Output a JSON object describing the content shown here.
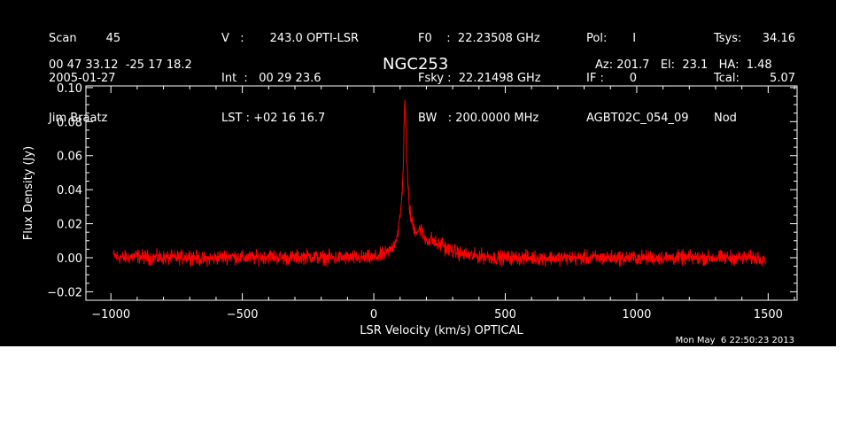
{
  "header": {
    "col1": [
      "Scan        45",
      "2005-01-27",
      "Jim Braatz"
    ],
    "col2": [
      "V   :       243.0 OPTI-LSR",
      "Int  :   00 29 23.6",
      "LST : +02 16 16.7"
    ],
    "col3": [
      "F0    :  22.23508 GHz",
      "Fsky :  22.21498 GHz",
      "BW   : 200.0000 MHz"
    ],
    "col4": [
      "Pol:       I",
      "IF :       0",
      "AGBT02C_054_09"
    ],
    "col5": [
      "Tsys:",
      "Tcal:",
      "Nod"
    ],
    "col6": [
      "34.16",
      "5.07"
    ],
    "coords": "00 47 33.12  -25 17 18.2",
    "azel": "Az: 201.7   El:  23.1   HA:  1.48"
  },
  "timestamp": "Mon May  6 22:50:23 2013",
  "colors": {
    "background": "#000000",
    "foreground": "#ffffff",
    "series": "#ff0000"
  },
  "chart_data": {
    "type": "line",
    "title": "NGC253",
    "xlabel": "LSR Velocity (km/s) OPTICAL",
    "ylabel": "Flux Density (Jy)",
    "xlim": [
      -1095,
      1610
    ],
    "ylim": [
      -0.025,
      0.101
    ],
    "xticks": [
      -1000,
      -500,
      0,
      500,
      1000,
      1500
    ],
    "xtick_labels": [
      "−1000",
      "−500",
      "0",
      "500",
      "1000",
      "1500"
    ],
    "yticks": [
      -0.02,
      0.0,
      0.02,
      0.04,
      0.06,
      0.08,
      0.1
    ],
    "ytick_labels": [
      "−0.02",
      "0.00",
      "0.02",
      "0.04",
      "0.06",
      "0.08",
      "0.10"
    ],
    "grid": false,
    "series": [
      {
        "x": [
          -990,
          -950,
          -900,
          -850,
          -800,
          -750,
          -700,
          -650,
          -600,
          -550,
          -500,
          -450,
          -400,
          -350,
          -300,
          -250,
          -200,
          -150,
          -100,
          -50,
          0,
          20,
          40,
          60,
          70,
          80,
          90,
          95,
          100,
          105,
          110,
          113,
          116,
          119,
          122,
          125,
          130,
          135,
          140,
          150,
          160,
          170,
          180,
          190,
          200,
          210,
          220,
          230,
          240,
          250,
          260,
          270,
          280,
          290,
          300,
          320,
          340,
          380,
          420,
          460,
          500,
          550,
          600,
          650,
          700,
          750,
          800,
          850,
          900,
          950,
          1000,
          1050,
          1100,
          1150,
          1200,
          1250,
          1300,
          1350,
          1400,
          1450,
          1490
        ],
        "y": [
          0.001,
          0.0,
          0.001,
          0.0,
          0.0,
          0.0,
          0.001,
          -0.001,
          0.0,
          0.001,
          0.0,
          0.0,
          0.001,
          0.0,
          0.0,
          0.001,
          0.0,
          0.0,
          0.0,
          0.0,
          0.0,
          0.001,
          0.002,
          0.004,
          0.006,
          0.009,
          0.014,
          0.018,
          0.024,
          0.032,
          0.045,
          0.06,
          0.085,
          0.094,
          0.078,
          0.058,
          0.042,
          0.031,
          0.024,
          0.018,
          0.016,
          0.016,
          0.017,
          0.012,
          0.011,
          0.01,
          0.011,
          0.009,
          0.008,
          0.007,
          0.009,
          0.006,
          0.005,
          0.005,
          0.004,
          0.003,
          0.002,
          0.001,
          0.001,
          0.0,
          0.0,
          0.0,
          0.0,
          0.0,
          0.0,
          0.0,
          0.0,
          0.0,
          0.0,
          0.0,
          0.0,
          0.0,
          0.0,
          0.0,
          0.0,
          0.0,
          0.0,
          0.0,
          0.0,
          0.0,
          0.0
        ],
        "noise_rms": 0.003
      }
    ]
  }
}
